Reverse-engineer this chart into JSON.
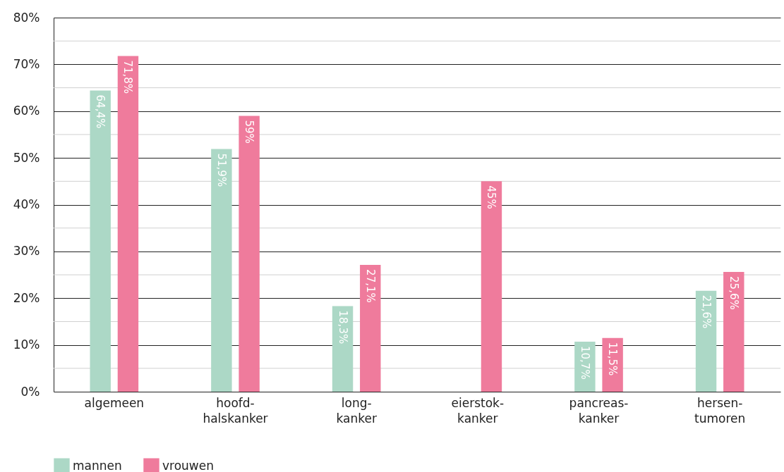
{
  "chart_data": {
    "type": "bar",
    "categories": [
      "algemeen",
      "hoofd-\nhalskanker",
      "long-\nkanker",
      "eierstok-\nkanker",
      "pancreas-\nkanker",
      "hersen-\ntumoren"
    ],
    "series": [
      {
        "name": "mannen",
        "color": "#acd8c6",
        "values": [
          64.4,
          51.9,
          18.3,
          null,
          10.7,
          21.6
        ],
        "value_labels": [
          "64,4%",
          "51,9%",
          "18,3%",
          null,
          "10,7%",
          "21,6%"
        ]
      },
      {
        "name": "vrouwen",
        "color": "#ef7b9c",
        "values": [
          71.8,
          59,
          27.1,
          45,
          11.5,
          25.6
        ],
        "value_labels": [
          "71,8%",
          "59%",
          "27,1%",
          "45%",
          "11,5%",
          "25,6%"
        ]
      }
    ],
    "ylim": [
      0,
      80
    ],
    "yticks": [
      {
        "value": 0,
        "label": "0%"
      },
      {
        "value": 5,
        "label": null
      },
      {
        "value": 10,
        "label": "10%"
      },
      {
        "value": 15,
        "label": null
      },
      {
        "value": 20,
        "label": "20%"
      },
      {
        "value": 25,
        "label": null
      },
      {
        "value": 30,
        "label": "30%"
      },
      {
        "value": 35,
        "label": null
      },
      {
        "value": 40,
        "label": "40%"
      },
      {
        "value": 45,
        "label": null
      },
      {
        "value": 50,
        "label": "50%"
      },
      {
        "value": 55,
        "label": null
      },
      {
        "value": 60,
        "label": "60%"
      },
      {
        "value": 65,
        "label": null
      },
      {
        "value": 70,
        "label": "70%"
      },
      {
        "value": 75,
        "label": null
      },
      {
        "value": 80,
        "label": "80%"
      }
    ],
    "grid": true,
    "legend": "bottom left"
  }
}
